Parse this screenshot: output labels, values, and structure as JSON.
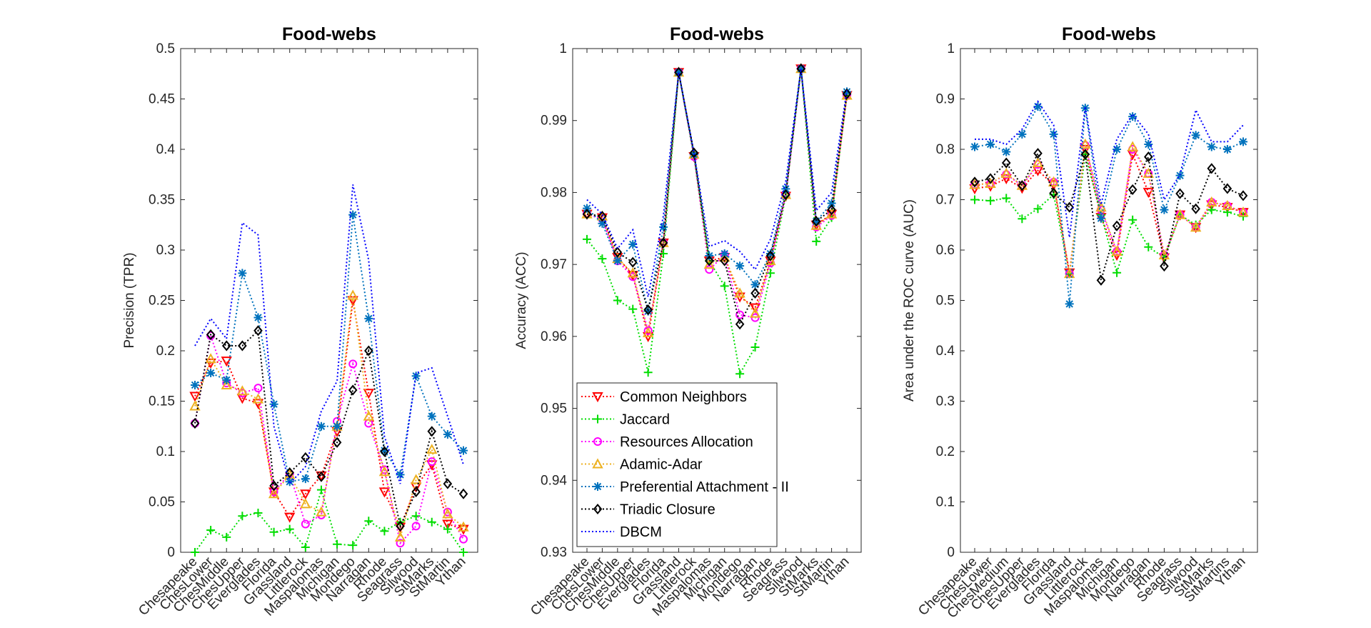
{
  "chart_data": [
    {
      "type": "line",
      "title": "Food-webs",
      "xlabel": "",
      "ylabel": "Precision (TPR)",
      "ylim": [
        0,
        0.5
      ],
      "yticks": [
        0,
        0.05,
        0.1,
        0.15,
        0.2,
        0.25,
        0.3,
        0.35,
        0.4,
        0.45,
        0.5
      ],
      "ytick_labels": [
        "0",
        "0.05",
        "0.1",
        "0.15",
        "0.2",
        "0.25",
        "0.3",
        "0.35",
        "0.4",
        "0.45",
        "0.5"
      ],
      "top_tick_label": "",
      "categories": [
        "Chesapeake",
        "ChesLower",
        "ChesMiddle",
        "ChesUpper",
        "Everglades",
        "Florida",
        "Grassland",
        "Littlerock",
        "Maspalomas",
        "Michigan",
        "Mondego",
        "Narragan",
        "Rhode",
        "Seagrass",
        "Silwood",
        "StMarks",
        "StMartin",
        "Ythan"
      ],
      "series": [
        {
          "name": "Common Neighbors",
          "values": [
            0.155,
            0.188,
            0.19,
            0.153,
            0.148,
            0.06,
            0.035,
            0.058,
            0.076,
            0.12,
            0.25,
            0.158,
            0.06,
            0.025,
            0.065,
            0.087,
            0.028,
            0.023
          ]
        },
        {
          "name": "Jaccard",
          "values": [
            0.0,
            0.022,
            0.015,
            0.036,
            0.039,
            0.02,
            0.023,
            0.005,
            0.062,
            0.008,
            0.007,
            0.031,
            0.021,
            0.03,
            0.036,
            0.03,
            0.023,
            0.0
          ]
        },
        {
          "name": "Resources Allocation",
          "values": [
            0.128,
            0.215,
            0.168,
            0.158,
            0.163,
            0.06,
            0.078,
            0.028,
            0.037,
            0.13,
            0.187,
            0.128,
            0.082,
            0.009,
            0.026,
            0.09,
            0.04,
            0.013
          ]
        },
        {
          "name": "Adamic-Adar",
          "values": [
            0.145,
            0.192,
            0.166,
            0.16,
            0.152,
            0.058,
            0.077,
            0.048,
            0.04,
            0.125,
            0.255,
            0.135,
            0.08,
            0.015,
            0.072,
            0.102,
            0.038,
            0.025
          ]
        },
        {
          "name": "Preferential Attachment - II",
          "values": [
            0.166,
            0.178,
            0.171,
            0.277,
            0.233,
            0.147,
            0.07,
            0.073,
            0.125,
            0.125,
            0.335,
            0.232,
            0.101,
            0.077,
            0.175,
            0.135,
            0.117,
            0.101
          ]
        },
        {
          "name": "Triadic Closure",
          "values": [
            0.128,
            0.216,
            0.205,
            0.205,
            0.22,
            0.066,
            0.079,
            0.094,
            0.075,
            0.109,
            0.161,
            0.2,
            0.1,
            0.026,
            0.06,
            0.12,
            0.068,
            0.058
          ]
        },
        {
          "name": "DBCM",
          "values": [
            0.205,
            0.232,
            0.212,
            0.327,
            0.315,
            0.125,
            0.068,
            0.085,
            0.14,
            0.17,
            0.365,
            0.29,
            0.115,
            0.068,
            0.178,
            0.183,
            0.135,
            0.087
          ]
        }
      ]
    },
    {
      "type": "line",
      "title": "Food-webs",
      "xlabel": "",
      "ylabel": "Accuracy (ACC)",
      "ylim": [
        0.93,
        1.0
      ],
      "yticks": [
        0.93,
        0.94,
        0.95,
        0.96,
        0.97,
        0.98,
        0.99
      ],
      "ytick_labels": [
        "0.93",
        "0.94",
        "0.95",
        "0.96",
        "0.97",
        "0.98",
        "0.99"
      ],
      "top_tick_label": "1",
      "categories": [
        "Chesapeake",
        "ChesLower",
        "ChesMiddle",
        "ChesUpper",
        "Everglades",
        "Florida",
        "Grassland",
        "Littlerock",
        "Maspalomas",
        "Michigan",
        "Mondego",
        "Narragan",
        "Rhode",
        "Seagrass",
        "Silwood",
        "StMarks",
        "StMartin",
        "Ythan"
      ],
      "series": [
        {
          "name": "Common Neighbors",
          "values": [
            0.977,
            0.9765,
            0.971,
            0.9685,
            0.96,
            0.973,
            0.9967,
            0.985,
            0.9705,
            0.971,
            0.9655,
            0.964,
            0.9705,
            0.9795,
            0.9972,
            0.9755,
            0.977,
            0.9935
          ]
        },
        {
          "name": "Jaccard",
          "values": [
            0.9735,
            0.9708,
            0.965,
            0.9638,
            0.955,
            0.9715,
            0.9967,
            0.985,
            0.9705,
            0.967,
            0.9548,
            0.9585,
            0.9688,
            0.9795,
            0.9972,
            0.9732,
            0.9765,
            0.9935
          ]
        },
        {
          "name": "Resources Allocation",
          "values": [
            0.977,
            0.9763,
            0.9705,
            0.9683,
            0.9608,
            0.973,
            0.9967,
            0.985,
            0.9693,
            0.9713,
            0.963,
            0.9626,
            0.9702,
            0.9797,
            0.9972,
            0.9752,
            0.9768,
            0.9935
          ]
        },
        {
          "name": "Adamic-Adar",
          "values": [
            0.977,
            0.9767,
            0.9708,
            0.9688,
            0.9605,
            0.973,
            0.9967,
            0.9853,
            0.97,
            0.971,
            0.966,
            0.9632,
            0.9705,
            0.9797,
            0.9972,
            0.9754,
            0.977,
            0.9935
          ]
        },
        {
          "name": "Preferential Attachment - II",
          "values": [
            0.9778,
            0.9757,
            0.9705,
            0.9728,
            0.9635,
            0.9752,
            0.9967,
            0.9853,
            0.9712,
            0.9715,
            0.9698,
            0.9672,
            0.9715,
            0.9805,
            0.9972,
            0.976,
            0.9785,
            0.994
          ]
        },
        {
          "name": "Triadic Closure",
          "values": [
            0.977,
            0.9767,
            0.9717,
            0.9703,
            0.9637,
            0.973,
            0.9967,
            0.9855,
            0.9705,
            0.9705,
            0.9617,
            0.966,
            0.9712,
            0.9797,
            0.9972,
            0.976,
            0.9776,
            0.9937
          ]
        },
        {
          "name": "DBCM",
          "values": [
            0.979,
            0.977,
            0.9722,
            0.9748,
            0.9655,
            0.9768,
            0.9967,
            0.9855,
            0.9725,
            0.9733,
            0.9718,
            0.9693,
            0.9735,
            0.9815,
            0.9972,
            0.9775,
            0.98,
            0.9942
          ]
        }
      ],
      "legend": {
        "location": "bottom-left",
        "entries": [
          "Common Neighbors",
          "Jaccard",
          "Resources Allocation",
          "Adamic-Adar",
          "Preferential Attachment - II",
          "Triadic Closure",
          "DBCM"
        ]
      }
    },
    {
      "type": "line",
      "title": "Food-webs",
      "xlabel": "",
      "ylabel": "Area under the ROC curve (AUC)",
      "ylim": [
        0,
        1.0
      ],
      "yticks": [
        0,
        0.1,
        0.2,
        0.3,
        0.4,
        0.5,
        0.6,
        0.7,
        0.8,
        0.9
      ],
      "ytick_labels": [
        "0",
        "0.1",
        "0.2",
        "0.3",
        "0.4",
        "0.5",
        "0.6",
        "0.7",
        "0.8",
        "0.9"
      ],
      "top_tick_label": "1",
      "categories": [
        "Chesapeake",
        "ChesLower",
        "ChesMedium",
        "ChesUpper",
        "Everglades",
        "Florida",
        "Grassland",
        "Littlerock",
        "Maspalomas",
        "Michigan",
        "Mondego",
        "Narragan",
        "Rhode",
        "Seagrass",
        "Silwood",
        "StMarks",
        "StMartins",
        "Ythan"
      ],
      "series": [
        {
          "name": "Common Neighbors",
          "values": [
            0.722,
            0.727,
            0.742,
            0.723,
            0.758,
            0.73,
            0.555,
            0.8,
            0.665,
            0.59,
            0.79,
            0.715,
            0.585,
            0.67,
            0.645,
            0.69,
            0.685,
            0.675
          ]
        },
        {
          "name": "Jaccard",
          "values": [
            0.7,
            0.698,
            0.703,
            0.662,
            0.682,
            0.71,
            0.553,
            0.79,
            0.67,
            0.555,
            0.66,
            0.606,
            0.585,
            0.67,
            0.65,
            0.68,
            0.675,
            0.667
          ]
        },
        {
          "name": "Resources Allocation",
          "values": [
            0.73,
            0.732,
            0.75,
            0.728,
            0.77,
            0.735,
            0.553,
            0.808,
            0.68,
            0.597,
            0.8,
            0.752,
            0.59,
            0.67,
            0.645,
            0.695,
            0.688,
            0.675
          ]
        },
        {
          "name": "Adamic-Adar",
          "values": [
            0.73,
            0.732,
            0.752,
            0.728,
            0.773,
            0.735,
            0.553,
            0.81,
            0.685,
            0.597,
            0.805,
            0.752,
            0.59,
            0.67,
            0.645,
            0.695,
            0.688,
            0.675
          ]
        },
        {
          "name": "Preferential Attachment - II",
          "values": [
            0.805,
            0.81,
            0.795,
            0.83,
            0.885,
            0.83,
            0.493,
            0.882,
            0.663,
            0.8,
            0.865,
            0.81,
            0.68,
            0.748,
            0.828,
            0.805,
            0.8,
            0.815
          ]
        },
        {
          "name": "Triadic Closure",
          "values": [
            0.735,
            0.742,
            0.773,
            0.728,
            0.792,
            0.713,
            0.685,
            0.79,
            0.54,
            0.648,
            0.72,
            0.785,
            0.568,
            0.712,
            0.682,
            0.762,
            0.722,
            0.708
          ]
        },
        {
          "name": "DBCM",
          "values": [
            0.82,
            0.82,
            0.81,
            0.84,
            0.895,
            0.848,
            0.625,
            0.885,
            0.69,
            0.82,
            0.87,
            0.83,
            0.7,
            0.75,
            0.878,
            0.815,
            0.815,
            0.848
          ]
        }
      ]
    }
  ],
  "styles": {
    "Common Neighbors": {
      "color": "#ff0000",
      "marker": "triangle-down-marker"
    },
    "Jaccard": {
      "color": "#00dd00",
      "marker": "plus-marker"
    },
    "Resources Allocation": {
      "color": "#ff00ff",
      "marker": "circle-marker"
    },
    "Adamic-Adar": {
      "color": "#edb120",
      "marker": "triangle-up-marker"
    },
    "Preferential Attachment - II": {
      "color": "#0072bd",
      "marker": "asterisk-marker"
    },
    "Triadic Closure": {
      "color": "#000000",
      "marker": "diamond-marker"
    },
    "DBCM": {
      "color": "#0000ff",
      "marker": "none"
    }
  }
}
